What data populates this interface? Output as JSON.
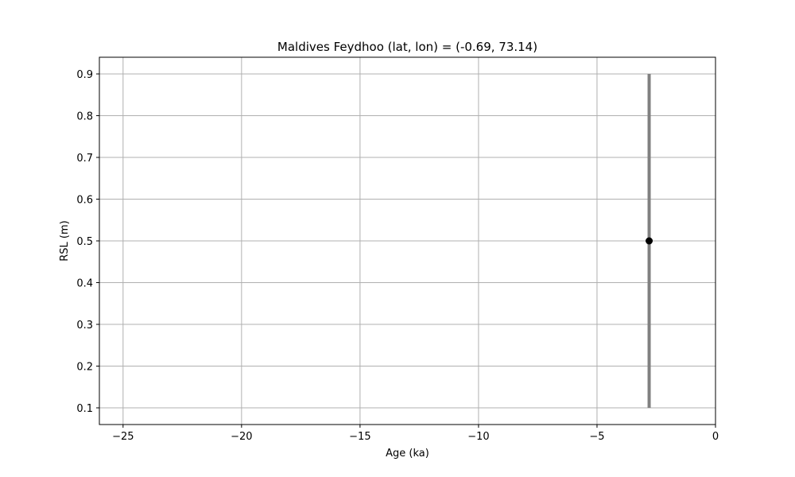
{
  "chart_data": {
    "type": "scatter",
    "title": "Maldives Feydhoo (lat, lon) = (-0.69, 73.14)",
    "xlabel": "Age (ka)",
    "ylabel": "RSL (m)",
    "xlim": [
      -26,
      0
    ],
    "ylim": [
      0.06,
      0.94
    ],
    "xticks": [
      -25,
      -20,
      -15,
      -10,
      -5,
      0
    ],
    "xtick_labels": [
      "−25",
      "−20",
      "−15",
      "−10",
      "−5",
      "0"
    ],
    "yticks": [
      0.1,
      0.2,
      0.3,
      0.4,
      0.5,
      0.6,
      0.7,
      0.8,
      0.9
    ],
    "ytick_labels": [
      "0.1",
      "0.2",
      "0.3",
      "0.4",
      "0.5",
      "0.6",
      "0.7",
      "0.8",
      "0.9"
    ],
    "grid": true,
    "points": [
      {
        "x": -2.8,
        "y": 0.5,
        "y_low": 0.1,
        "y_high": 0.9
      }
    ],
    "colors": {
      "point": "#000000",
      "errorbar": "#808080",
      "grid": "#b0b0b0"
    }
  }
}
